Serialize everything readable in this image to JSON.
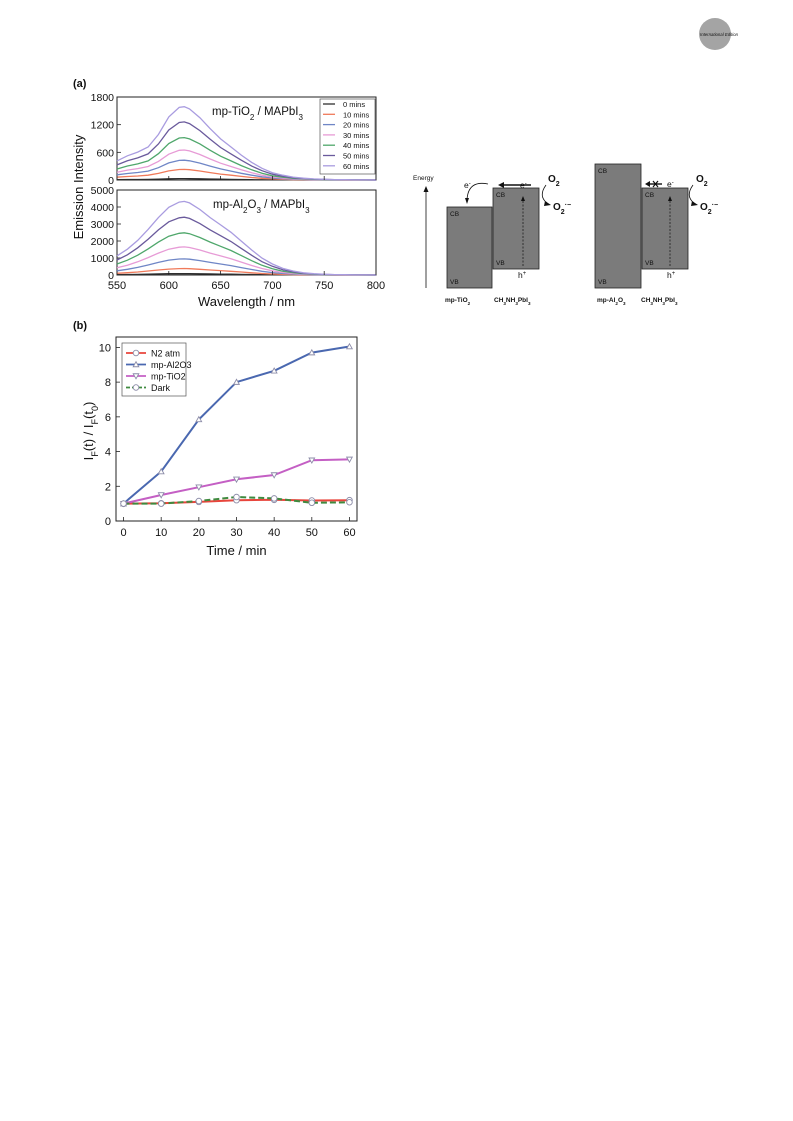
{
  "badge": {
    "text": "International Edition",
    "color": "#a4a4a4"
  },
  "panel_a_label": "(a)",
  "panel_b_label": "(b)",
  "chart_data": [
    {
      "id": "top",
      "type": "line",
      "title": "mp-TiO2 / MAPbI3",
      "title_parts": {
        "a": "mp-TiO",
        "sub1": "2",
        "b": " / MAPbI",
        "sub2": "3"
      },
      "ylabel": "Emission Intensity",
      "xlim": [
        550,
        800
      ],
      "ylim": [
        0,
        1800
      ],
      "yticks": [
        "1800",
        "1200",
        "600",
        "0"
      ],
      "ytick_values": [
        1800,
        1200,
        600,
        0
      ],
      "x": [
        550,
        560,
        570,
        580,
        590,
        600,
        610,
        615,
        620,
        630,
        640,
        650,
        660,
        670,
        680,
        690,
        700,
        710,
        720,
        730,
        740,
        750,
        760,
        770,
        780,
        790,
        800
      ],
      "shape": [
        0.26,
        0.33,
        0.38,
        0.45,
        0.62,
        0.86,
        0.99,
        1.0,
        0.97,
        0.85,
        0.7,
        0.56,
        0.45,
        0.34,
        0.24,
        0.16,
        0.1,
        0.065,
        0.04,
        0.025,
        0.015,
        0.01,
        0.006,
        0.004,
        0.002,
        0.001,
        0.0
      ],
      "legend": [
        "0 mins",
        "10 mins",
        "20 mins",
        "30 mins",
        "40 mins",
        "50 mins",
        "60 mins"
      ],
      "series": [
        {
          "name": "0 mins",
          "peak": 30,
          "color": "#2f2f2f"
        },
        {
          "name": "10 mins",
          "peak": 230,
          "color": "#f07a5a"
        },
        {
          "name": "20 mins",
          "peak": 430,
          "color": "#6f86c6"
        },
        {
          "name": "30 mins",
          "peak": 650,
          "color": "#e79bd6"
        },
        {
          "name": "40 mins",
          "peak": 920,
          "color": "#4fa76b"
        },
        {
          "name": "50 mins",
          "peak": 1260,
          "color": "#6a5a9c"
        },
        {
          "name": "60 mins",
          "peak": 1590,
          "color": "#a99ce0"
        }
      ]
    },
    {
      "id": "bottom",
      "type": "line",
      "title": "mp-Al2O3 / MAPbI3",
      "title_parts": {
        "a": "mp-Al",
        "sub1": "2",
        "b": "O",
        "sub2": "3",
        "c": " / MAPbI",
        "sub3": "3"
      },
      "xlabel": "Wavelength / nm",
      "xlim": [
        550,
        800
      ],
      "ylim": [
        0,
        5000
      ],
      "yticks": [
        "5000",
        "4000",
        "3000",
        "2000",
        "1000",
        "0"
      ],
      "ytick_values": [
        5000,
        4000,
        3000,
        2000,
        1000,
        0
      ],
      "xticks": [
        "550",
        "600",
        "650",
        "700",
        "750",
        "800"
      ],
      "xtick_values": [
        550,
        600,
        650,
        700,
        750,
        800
      ],
      "x": [
        550,
        560,
        570,
        580,
        590,
        600,
        610,
        615,
        620,
        630,
        640,
        650,
        660,
        670,
        680,
        690,
        700,
        710,
        720,
        730,
        740,
        750,
        760,
        770,
        780,
        790,
        800
      ],
      "shape": [
        0.26,
        0.35,
        0.47,
        0.62,
        0.78,
        0.92,
        0.99,
        1.0,
        0.98,
        0.89,
        0.78,
        0.68,
        0.58,
        0.46,
        0.34,
        0.23,
        0.15,
        0.09,
        0.055,
        0.03,
        0.018,
        0.01,
        0.006,
        0.004,
        0.002,
        0.001,
        0.0
      ],
      "series": [
        {
          "name": "0 mins",
          "peak": 80,
          "color": "#2f2f2f"
        },
        {
          "name": "10 mins",
          "peak": 380,
          "color": "#f07a5a"
        },
        {
          "name": "20 mins",
          "peak": 950,
          "color": "#6f86c6"
        },
        {
          "name": "30 mins",
          "peak": 1650,
          "color": "#e79bd6"
        },
        {
          "name": "40 mins",
          "peak": 2480,
          "color": "#4fa76b"
        },
        {
          "name": "50 mins",
          "peak": 3400,
          "color": "#6a5a9c"
        },
        {
          "name": "60 mins",
          "peak": 4330,
          "color": "#a99ce0"
        }
      ]
    },
    {
      "id": "ratio",
      "type": "line",
      "xlabel": "Time / min",
      "ylabel_parts": {
        "a": "I",
        "sub1": "F",
        "b": "(t) / I",
        "sub2": "F",
        "c": "(t",
        "sub3": "0",
        "d": ")"
      },
      "xlim": [
        -2,
        62
      ],
      "ylim": [
        0,
        10.6
      ],
      "xticks": [
        "0",
        "10",
        "20",
        "30",
        "40",
        "50",
        "60"
      ],
      "xtick_values": [
        0,
        10,
        20,
        30,
        40,
        50,
        60
      ],
      "yticks": [
        "0",
        "2",
        "4",
        "6",
        "8",
        "10"
      ],
      "ytick_values": [
        0,
        2,
        4,
        6,
        8,
        10
      ],
      "x": [
        0,
        10,
        20,
        30,
        40,
        50,
        60
      ],
      "series": [
        {
          "name": "N2 atm",
          "values": [
            1.0,
            1.02,
            1.1,
            1.2,
            1.22,
            1.18,
            1.2
          ],
          "color": "#e8453c",
          "marker": "circle",
          "dash": ""
        },
        {
          "name": "mp-Al2O3",
          "values": [
            1.0,
            2.85,
            5.85,
            8.0,
            8.65,
            9.7,
            10.05
          ],
          "color": "#4a68b0",
          "marker": "triangle-up",
          "dash": ""
        },
        {
          "name": "mp-TiO2",
          "values": [
            1.0,
            1.5,
            1.95,
            2.4,
            2.65,
            3.5,
            3.55
          ],
          "color": "#c45fc4",
          "marker": "triangle-down",
          "dash": ""
        },
        {
          "name": "Dark",
          "values": [
            1.0,
            1.0,
            1.15,
            1.38,
            1.3,
            1.05,
            1.08
          ],
          "color": "#3f8a3f",
          "marker": "circle",
          "dash": "6,3"
        }
      ]
    }
  ],
  "diagram": {
    "energy_label": "Energy",
    "left": {
      "ox_label": "mp-TiO",
      "ox_sub": "2",
      "perov_label": "CH",
      "perov_sub": "3",
      "perov_mid": "NH",
      "perov_sub2": "3",
      "perov_end": "PbI",
      "perov_sub3": "3",
      "cb1": "CB",
      "vb1": "VB",
      "cb2": "CB",
      "vb2": "VB",
      "e1": "e",
      "e2": "e",
      "h": "h",
      "o2": "O",
      "o2_sub": "2",
      "sup_ox": "O"
    },
    "right": {
      "ox_label": "mp-Al",
      "ox_sub": "2",
      "ox_mid": "O",
      "ox_sub2": "3",
      "cb1": "CB",
      "vb1": "VB",
      "cb2": "CB",
      "vb2": "VB",
      "e": "e",
      "h": "h",
      "o2": "O",
      "o2_sub": "2",
      "sup_ox": "O"
    },
    "box_color": "#7b7b7b"
  }
}
